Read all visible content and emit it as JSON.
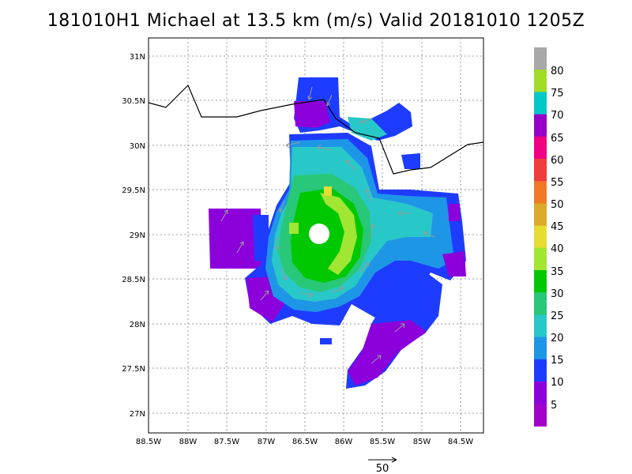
{
  "title": "181010H1 Michael at 13.5 km (m/s) Valid 20181010 1205Z",
  "lat_ticks": [
    "31N",
    "30.5N",
    "30N",
    "29.5N",
    "29N",
    "28.5N",
    "28N",
    "27.5N",
    "27N"
  ],
  "lon_ticks": [
    "88.5W",
    "88W",
    "87.5W",
    "87W",
    "86.5W",
    "86W",
    "85.5W",
    "85W",
    "84.5W"
  ],
  "colorbar": {
    "labels": [
      "80",
      "75",
      "70",
      "65",
      "60",
      "55",
      "50",
      "45",
      "40",
      "35",
      "30",
      "25",
      "20",
      "15",
      "10",
      "5"
    ],
    "colors": [
      "#a8a8a8",
      "#a0dc28",
      "#00c8c8",
      "#9600c8",
      "#f00082",
      "#f03c3c",
      "#f07828",
      "#dcaa28",
      "#e6dc32",
      "#a0e632",
      "#00c800",
      "#28c878",
      "#28c8c8",
      "#1e96e6",
      "#1e3cff",
      "#8c00dc",
      "#a000c8"
    ]
  },
  "reference_vector": {
    "label": "50"
  },
  "colors": {
    "coast": "#000000",
    "grid": "#999999",
    "arrow": "#999999"
  }
}
